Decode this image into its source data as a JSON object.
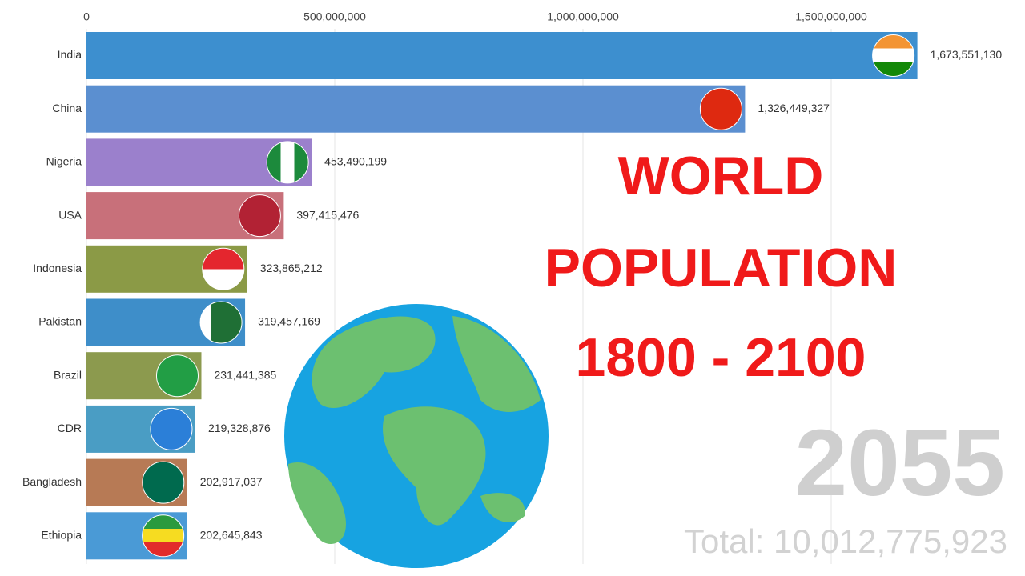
{
  "chart_data": {
    "type": "bar",
    "orientation": "horizontal",
    "title": [
      "WORLD",
      "POPULATION",
      "1800 - 2100"
    ],
    "year": "2055",
    "total": "Total: 10,012,775,923",
    "categories": [
      "India",
      "China",
      "Nigeria",
      "USA",
      "Indonesia",
      "Pakistan",
      "Brazil",
      "CDR",
      "Bangladesh",
      "Ethiopia"
    ],
    "values": [
      1673551130,
      1326449327,
      453490199,
      397415476,
      323865212,
      319457169,
      231441385,
      219328876,
      202917037,
      202645843
    ],
    "value_labels": [
      "1,673,551,130",
      "1,326,449,327",
      "453,490,199",
      "397,415,476",
      "323,865,212",
      "319,457,169",
      "231,441,385",
      "219,328,876",
      "202,917,037",
      "202,645,843"
    ],
    "colors": [
      "#3d8fcf",
      "#5b8fd0",
      "#9b80cc",
      "#c8707a",
      "#8b9a46",
      "#3e8ec9",
      "#8c9a4e",
      "#4a9dc4",
      "#b77a55",
      "#4a9ad6"
    ],
    "xlim": [
      0,
      1800000000
    ],
    "xticks": [
      0,
      {
        "value": 500000000,
        "label": "500,000,000"
      },
      {
        "value": 1000000000,
        "label": "1,000,000,000"
      },
      {
        "value": 1500000000,
        "label": "1,500,000,000"
      }
    ],
    "grid": true
  }
}
